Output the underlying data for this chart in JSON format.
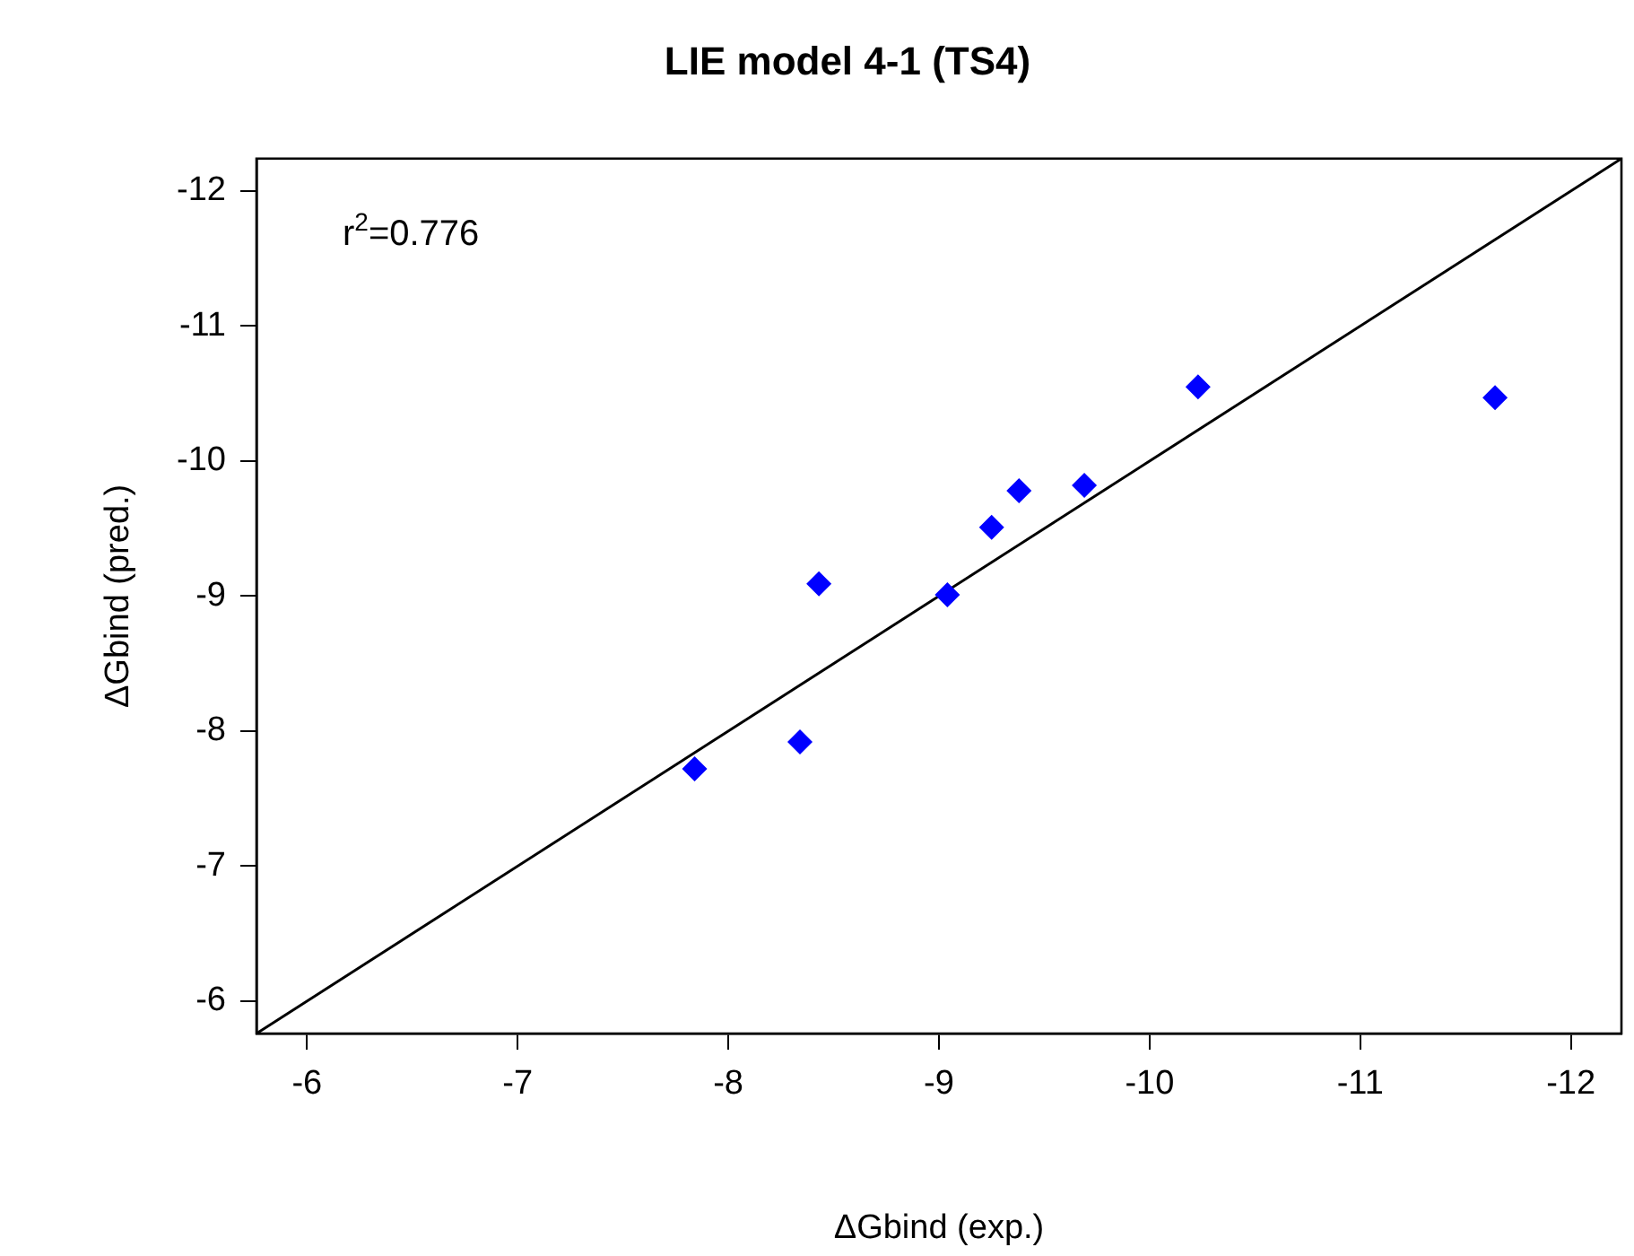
{
  "chart_data": {
    "type": "scatter",
    "title": "LIE model 4-1 (TS4)",
    "xlabel": "ΔGbind (exp.)",
    "ylabel": "ΔGbind (pred.)",
    "annotations": [
      "r$^{2}$=0.776"
    ],
    "xlim": [
      -5.76,
      -12.24
    ],
    "ylim": [
      -5.76,
      -12.24
    ],
    "xticks": [
      -6,
      -7,
      -8,
      -9,
      -10,
      -11,
      -12
    ],
    "yticks": [
      -6,
      -7,
      -8,
      -9,
      -10,
      -11,
      -12
    ],
    "grid": false,
    "legend": false,
    "series": [
      {
        "type": "scatter",
        "color": "#0000ff",
        "marker": "diamond",
        "x": [
          -7.84,
          -8.34,
          -8.43,
          -9.04,
          -9.25,
          -9.38,
          -9.69,
          -10.23,
          -11.64
        ],
        "values": [
          -7.72,
          -7.92,
          -9.09,
          -9.01,
          -9.51,
          -9.78,
          -9.82,
          -10.55,
          -10.47
        ]
      },
      {
        "type": "line",
        "color": "#000000",
        "marker": "none",
        "line_style": "solid",
        "x": [
          -5.76,
          -12.24
        ],
        "values": [
          -5.76,
          -12.24
        ]
      }
    ]
  }
}
